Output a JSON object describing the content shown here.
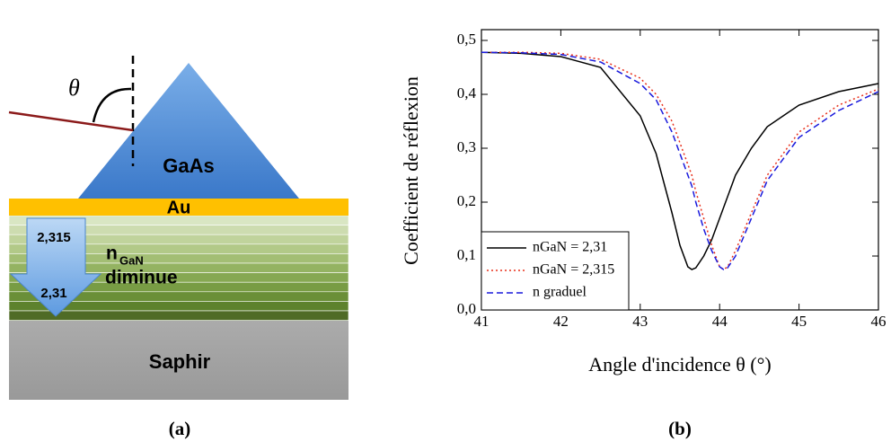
{
  "diagram": {
    "theta": "θ",
    "prism": "GaAs",
    "gold": "Au",
    "arrow_top": "2,315",
    "arrow_bottom": "2,31",
    "n": "n",
    "n_sub": "GaN",
    "decrease": "diminue",
    "substrate": "Saphir",
    "caption": "(a)"
  },
  "chart_data": {
    "type": "line",
    "caption": "(b)",
    "x_label": "Angle d'incidence θ (°)",
    "y_label": "Coefficient de réflexion",
    "x": [
      41,
      41.5,
      42,
      42.5,
      43,
      43.2,
      43.4,
      43.5,
      43.6,
      43.65,
      43.7,
      43.8,
      43.9,
      44,
      44.05,
      44.1,
      44.2,
      44.4,
      44.6,
      45,
      45.5,
      46
    ],
    "series": [
      {
        "name": "nGaN = 2,31",
        "color": "#000000",
        "dash": "solid",
        "values": [
          0.478,
          0.476,
          0.47,
          0.45,
          0.36,
          0.29,
          0.18,
          0.12,
          0.08,
          0.075,
          0.078,
          0.1,
          0.13,
          0.17,
          0.19,
          0.21,
          0.25,
          0.3,
          0.34,
          0.38,
          0.405,
          0.42
        ]
      },
      {
        "name": "nGaN = 2,315",
        "color": "#e8301c",
        "dash": "dotted",
        "values": [
          0.478,
          0.478,
          0.476,
          0.465,
          0.43,
          0.4,
          0.35,
          0.31,
          0.27,
          0.25,
          0.22,
          0.17,
          0.12,
          0.08,
          0.075,
          0.08,
          0.11,
          0.18,
          0.25,
          0.33,
          0.38,
          0.41
        ]
      },
      {
        "name": "n graduel",
        "color": "#1a1adc",
        "dash": "dashed",
        "values": [
          0.478,
          0.477,
          0.474,
          0.46,
          0.42,
          0.39,
          0.33,
          0.29,
          0.25,
          0.23,
          0.2,
          0.15,
          0.11,
          0.08,
          0.075,
          0.078,
          0.1,
          0.17,
          0.24,
          0.32,
          0.37,
          0.405
        ]
      }
    ],
    "xlim": [
      41,
      46
    ],
    "xticks": [
      41,
      42,
      43,
      44,
      45,
      46
    ],
    "ylim": [
      0,
      0.52
    ],
    "yticks": [
      {
        "value": 0,
        "label": "0,0"
      },
      {
        "value": 0.1,
        "label": "0,1"
      },
      {
        "value": 0.2,
        "label": "0,2"
      },
      {
        "value": 0.3,
        "label": "0,3"
      },
      {
        "value": 0.4,
        "label": "0,4"
      },
      {
        "value": 0.5,
        "label": "0,5"
      }
    ],
    "grid": false,
    "legend": "lower left"
  }
}
